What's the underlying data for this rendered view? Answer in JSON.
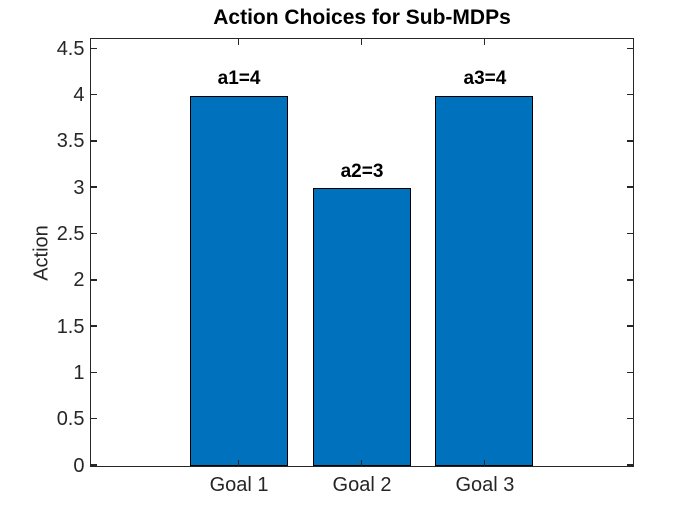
{
  "chart_data": {
    "type": "bar",
    "title": "Action Choices for Sub-MDPs",
    "xlabel": "",
    "ylabel": "Action",
    "categories": [
      "Goal 1",
      "Goal 2",
      "Goal 3"
    ],
    "values": [
      4,
      3,
      4
    ],
    "bar_labels": [
      "a1=4",
      "a2=3",
      "a3=4"
    ],
    "ytick_values": [
      0,
      0.5,
      1,
      1.5,
      2,
      2.5,
      3,
      3.5,
      4,
      4.5
    ],
    "ytick_labels": [
      "0",
      "0.5",
      "1",
      "1.5",
      "2",
      "2.5",
      "3",
      "3.5",
      "4",
      "4.5"
    ],
    "ylim": [
      0,
      4.6
    ],
    "xlim": [
      -0.2,
      4.2
    ],
    "grid": false,
    "legend": null,
    "colors": {
      "bar_fill": "#0072BD",
      "bar_edge": "#000000",
      "axis": "#262626",
      "tick_label": "#262626",
      "title": "#000000",
      "bar_label": "#000000",
      "background": "#FFFFFF"
    }
  }
}
